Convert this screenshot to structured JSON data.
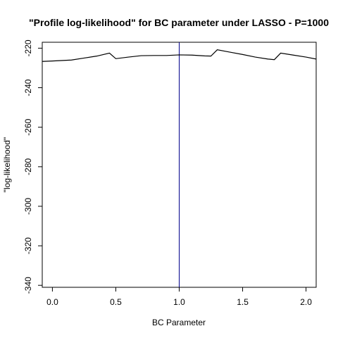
{
  "chart_data": {
    "type": "line",
    "title": "\"Profile log-likelihood\" for BC parameter under LASSO - P=1000",
    "xlabel": "BC Parameter",
    "ylabel": "\"log-likelihood\"",
    "xlim": [
      -0.08,
      2.08
    ],
    "ylim": [
      -341,
      -217
    ],
    "x_ticks": [
      0.0,
      0.5,
      1.0,
      1.5,
      2.0
    ],
    "x_tick_labels": [
      "0.0",
      "0.5",
      "1.0",
      "1.5",
      "2.0"
    ],
    "y_ticks": [
      -220,
      -240,
      -260,
      -280,
      -300,
      -320,
      -340
    ],
    "y_tick_labels": [
      "-220",
      "-240",
      "-260",
      "-280",
      "-300",
      "-320",
      "-340"
    ],
    "grid": false,
    "vline": {
      "x": 1.0,
      "color": "#00008b"
    },
    "series": [
      {
        "color": "#000000",
        "x": [
          -0.08,
          0.0,
          0.15,
          0.25,
          0.35,
          0.45,
          0.5,
          0.6,
          0.7,
          0.8,
          0.9,
          1.0,
          1.1,
          1.2,
          1.25,
          1.3,
          1.4,
          1.5,
          1.6,
          1.7,
          1.75,
          1.8,
          1.9,
          2.0,
          2.08
        ],
        "y": [
          -226.7,
          -226.5,
          -226.0,
          -225.0,
          -224.0,
          -222.5,
          -225.3,
          -224.5,
          -223.8,
          -223.7,
          -223.7,
          -223.4,
          -223.5,
          -223.9,
          -224.0,
          -220.8,
          -222.0,
          -223.2,
          -224.5,
          -225.5,
          -225.8,
          -222.5,
          -223.5,
          -224.5,
          -225.5
        ]
      }
    ]
  }
}
